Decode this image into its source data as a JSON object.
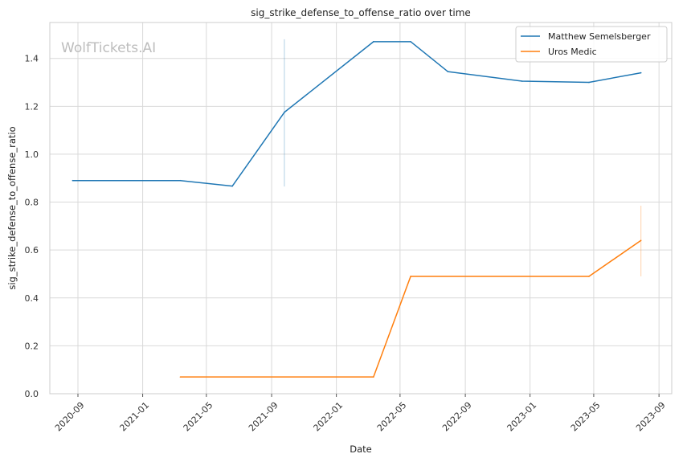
{
  "chart_data": {
    "type": "line",
    "title": "sig_strike_defense_to_offense_ratio over time",
    "xlabel": "Date",
    "ylabel": "sig_strike_defense_to_offense_ratio",
    "watermark": "WolfTickets.AI",
    "x_ticks": [
      "2020-09",
      "2021-01",
      "2021-05",
      "2021-09",
      "2022-01",
      "2022-05",
      "2022-09",
      "2023-01",
      "2023-05",
      "2023-09"
    ],
    "y_ticks": [
      "0.0",
      "0.2",
      "0.4",
      "0.6",
      "0.8",
      "1.0",
      "1.2",
      "1.4"
    ],
    "xlim": [
      "2020-07-10",
      "2023-09-25"
    ],
    "ylim": [
      0,
      1.55
    ],
    "grid": true,
    "legend_position": "top-right",
    "series": [
      {
        "name": "Matthew Semelsberger",
        "color": "#1f77b4",
        "points": [
          {
            "x": "2020-08-22",
            "y": 0.89
          },
          {
            "x": "2021-03-13",
            "y": 0.89
          },
          {
            "x": "2021-06-19",
            "y": 0.867
          },
          {
            "x": "2021-09-25",
            "y": 1.175
          },
          {
            "x": "2022-03-12",
            "y": 1.47
          },
          {
            "x": "2022-05-21",
            "y": 1.47
          },
          {
            "x": "2022-07-30",
            "y": 1.345
          },
          {
            "x": "2022-12-17",
            "y": 1.305
          },
          {
            "x": "2023-04-22",
            "y": 1.3
          },
          {
            "x": "2023-07-29",
            "y": 1.34
          }
        ],
        "error_bars": [
          {
            "x": "2021-09-25",
            "low": 0.865,
            "high": 1.48
          }
        ]
      },
      {
        "name": "Uros Medic",
        "color": "#ff7f0e",
        "points": [
          {
            "x": "2021-03-13",
            "y": 0.07
          },
          {
            "x": "2022-03-12",
            "y": 0.07
          },
          {
            "x": "2022-05-21",
            "y": 0.49
          },
          {
            "x": "2023-04-22",
            "y": 0.49
          },
          {
            "x": "2023-07-29",
            "y": 0.64
          }
        ],
        "error_bars": [
          {
            "x": "2023-07-29",
            "low": 0.49,
            "high": 0.785
          }
        ]
      }
    ]
  }
}
